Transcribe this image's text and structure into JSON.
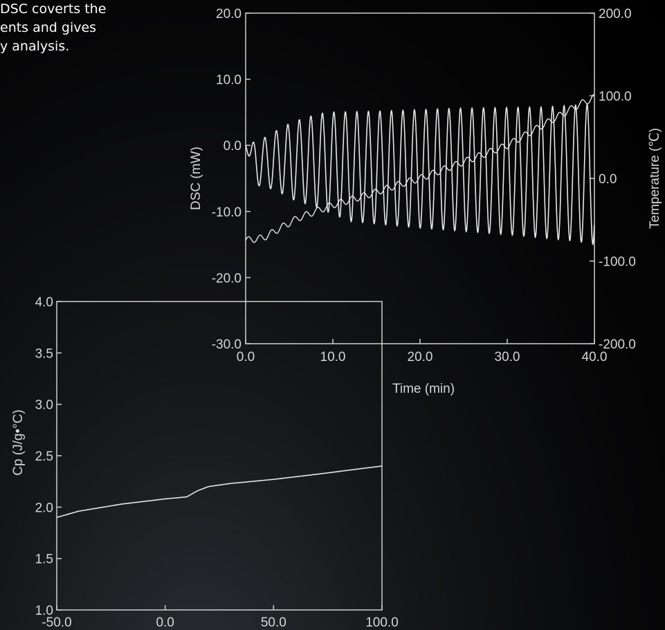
{
  "intro_text_lines": [
    "DSC coverts the",
    "ents and gives",
    "y analysis."
  ],
  "colors": {
    "axis": "#d0d0d0",
    "line": "#e6e6e6",
    "text": "#d6d6d6"
  },
  "chart_data": [
    {
      "type": "line",
      "xlabel": "Time (min)",
      "ylabel": "DSC (mW)",
      "y2label": "Temperature (℃)",
      "xlim": [
        0,
        40
      ],
      "ylim": [
        -30,
        20
      ],
      "y2lim": [
        -200,
        200
      ],
      "x_ticks": [
        "0.0",
        "10.0",
        "20.0",
        "30.0",
        "40.0"
      ],
      "y_ticks": [
        "20.0",
        "10.0",
        "0.0",
        "-10.0",
        "-20.0",
        "-30.0"
      ],
      "y2_ticks": [
        "200.0",
        "100.0",
        "0.0",
        "-100.0",
        "-200.0"
      ],
      "series": [
        {
          "axis": "left",
          "period_min": 1.32,
          "points": [
            [
              0,
              0
            ],
            [
              1.2,
              -6
            ],
            [
              2.2,
              1.2
            ],
            [
              3.3,
              -6.7
            ],
            [
              4.5,
              3.0
            ],
            [
              5.6,
              -8.3
            ],
            [
              6.8,
              4.2
            ],
            [
              8.0,
              -9.3
            ],
            [
              9.2,
              5.0
            ],
            [
              12,
              -11.5
            ],
            [
              16,
              5.2
            ],
            [
              20,
              -12.5
            ],
            [
              24,
              5.6
            ],
            [
              30,
              -13.5
            ],
            [
              34,
              5.8
            ],
            [
              38,
              -14.5
            ],
            [
              39.3,
              6.2
            ],
            [
              40,
              -15
            ]
          ]
        },
        {
          "axis": "right",
          "wiggle_amp": 4,
          "points": [
            [
              0,
              -75
            ],
            [
              2,
              -72
            ],
            [
              4,
              -60
            ],
            [
              6,
              -48
            ],
            [
              8,
              -40
            ],
            [
              10,
              -32
            ],
            [
              14,
              -20
            ],
            [
              18,
              -6
            ],
            [
              20,
              0
            ],
            [
              25,
              20
            ],
            [
              30,
              40
            ],
            [
              35,
              70
            ],
            [
              38,
              88
            ],
            [
              40,
              98
            ]
          ]
        }
      ]
    },
    {
      "type": "line",
      "ylabel": "Cp (J/g•°C)",
      "xlim": [
        -50,
        100
      ],
      "ylim": [
        1.0,
        4.0
      ],
      "x_ticks": [
        "-50.0",
        "0.0",
        "50.0",
        "100.0"
      ],
      "y_ticks": [
        "4.0",
        "3.5",
        "3.0",
        "2.5",
        "2.0",
        "1.5",
        "1.0"
      ],
      "series": [
        {
          "points": [
            [
              -50,
              1.9
            ],
            [
              -40,
              1.96
            ],
            [
              -20,
              2.03
            ],
            [
              0,
              2.08
            ],
            [
              10,
              2.1
            ],
            [
              15,
              2.16
            ],
            [
              20,
              2.2
            ],
            [
              30,
              2.23
            ],
            [
              50,
              2.27
            ],
            [
              70,
              2.32
            ],
            [
              100,
              2.4
            ]
          ]
        }
      ]
    }
  ]
}
